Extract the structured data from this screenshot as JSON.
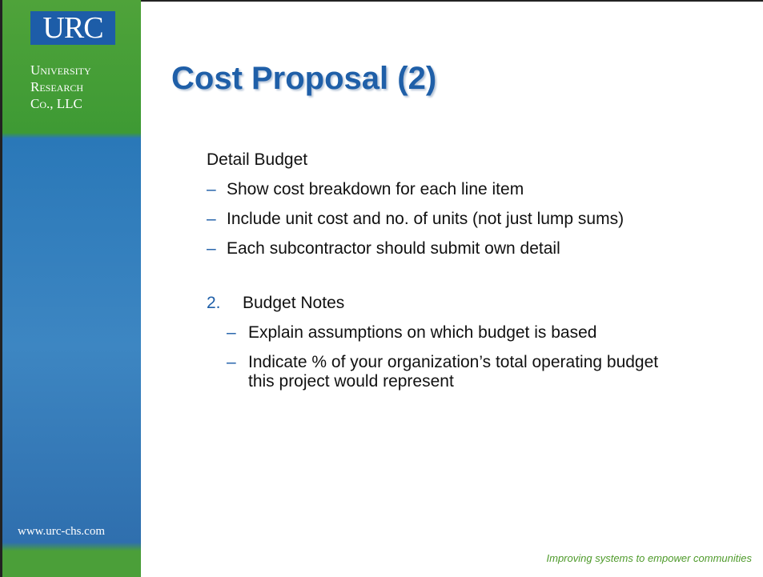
{
  "sidebar": {
    "logo": "URC",
    "company": [
      "University",
      "Research",
      "Co., LLC"
    ],
    "website": "www.urc-chs.com"
  },
  "title": "Cost Proposal (2)",
  "sections": [
    {
      "number": null,
      "heading": "Detail Budget",
      "items": [
        "Show cost breakdown for each line item",
        "Include unit cost and no. of units (not just lump sums)",
        "Each subcontractor should submit own detail"
      ]
    },
    {
      "number": "2.",
      "heading": "Budget Notes",
      "items": [
        "Explain assumptions on which budget is based",
        "Indicate % of your organization’s total operating budget this project would represent"
      ]
    }
  ],
  "footer": "Improving systems to empower communities"
}
